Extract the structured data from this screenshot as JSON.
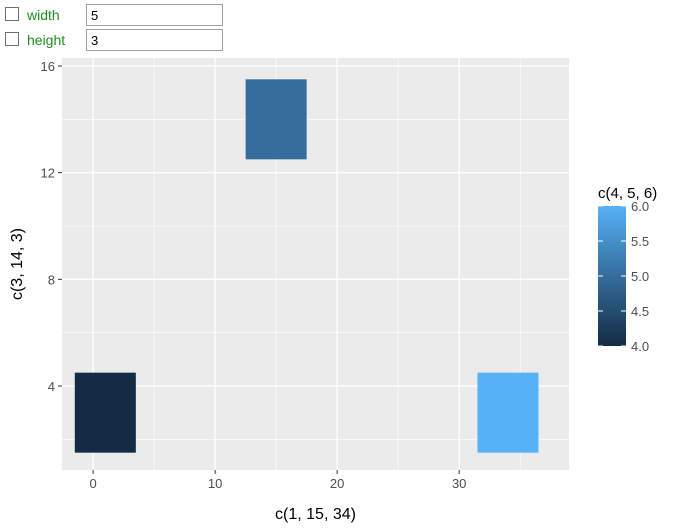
{
  "controls": {
    "width": {
      "label": "width",
      "value": "5",
      "checked": false
    },
    "height": {
      "label": "height",
      "value": "3",
      "checked": false
    }
  },
  "chart_data": {
    "type": "heatmap",
    "title": "",
    "xlabel": "c(1, 15, 34)",
    "ylabel": "c(3, 14, 3)",
    "xlim": [
      -2.55,
      39.0
    ],
    "ylim": [
      0.85,
      16.3
    ],
    "xticks": [
      0,
      10,
      20,
      30
    ],
    "xtick_labels": [
      "0",
      "10",
      "20",
      "30"
    ],
    "yticks": [
      4,
      8,
      12,
      16
    ],
    "ytick_labels": [
      "4",
      "8",
      "12",
      "16"
    ],
    "grid": true,
    "legend": {
      "title": "c(4, 5, 6)",
      "position": "right",
      "ticks": [
        4.0,
        4.5,
        5.0,
        5.5,
        6.0
      ],
      "tick_labels": [
        "4.0",
        "4.5",
        "5.0",
        "5.5",
        "6.0"
      ],
      "low_color": "#132B43",
      "high_color": "#56B1F7"
    },
    "tiles": [
      {
        "x": 1,
        "y": 3,
        "width": 5,
        "height": 3,
        "fill": 4
      },
      {
        "x": 15,
        "y": 14,
        "width": 5,
        "height": 3,
        "fill": 5
      },
      {
        "x": 34,
        "y": 3,
        "width": 5,
        "height": 3,
        "fill": 6
      }
    ],
    "colors": {
      "panel": "#EBEBEB",
      "grid": "#FFFFFF",
      "text": "#4D4D4D",
      "title_text": "#000000"
    }
  }
}
